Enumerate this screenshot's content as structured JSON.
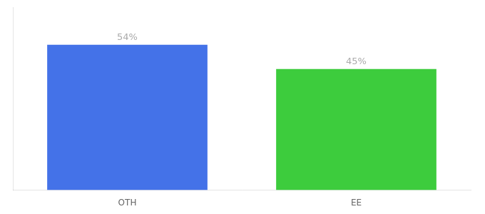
{
  "chart_data": {
    "type": "bar",
    "categories": [
      "OTH",
      "EE"
    ],
    "values": [
      54,
      45
    ],
    "value_labels": [
      "54%",
      "45%"
    ],
    "colors": [
      "#4472e8",
      "#3dcc3d"
    ],
    "ylim": [
      0,
      68
    ],
    "yticks": [],
    "grid": false,
    "data_labels": true,
    "tick_labels": "x"
  }
}
